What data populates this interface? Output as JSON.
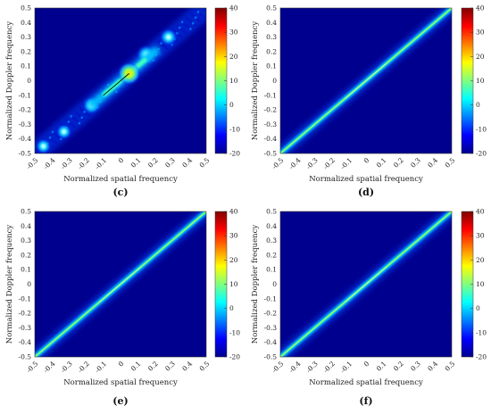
{
  "chart_data": [
    {
      "type": "heatmap",
      "panel_label": "(c)",
      "xlabel": "Normalized spatial frequency",
      "ylabel": "Normalized Doppler frequency",
      "xlim": [
        -0.5,
        0.5
      ],
      "ylim": [
        -0.5,
        0.5
      ],
      "x_ticks": [
        "-0.5",
        "-0.4",
        "-0.3",
        "-0.2",
        "-0.1",
        "0",
        "0.1",
        "0.2",
        "0.3",
        "0.4",
        "0.5"
      ],
      "y_ticks": [
        "0.5",
        "0.4",
        "0.3",
        "0.2",
        "0.1",
        "0",
        "-0.1",
        "-0.2",
        "-0.3",
        "-0.4",
        "-0.5"
      ],
      "colorbar": {
        "range": [
          -20,
          40
        ],
        "ticks": [
          "40",
          "30",
          "20",
          "10",
          "0",
          "-10",
          "-20"
        ]
      },
      "ridge": {
        "kind": "diagonal-segment",
        "x_range": [
          -0.1,
          0.15
        ],
        "peak": [
          0.05,
          0.05
        ]
      },
      "peaks": [
        {
          "x": -0.45,
          "y": -0.45,
          "level": 0.15
        },
        {
          "x": -0.33,
          "y": -0.35,
          "level": 0.15
        },
        {
          "x": -0.17,
          "y": -0.17,
          "level": 0.2
        },
        {
          "x": 0.28,
          "y": 0.3,
          "level": 0.2
        },
        {
          "x": 0.15,
          "y": 0.18,
          "level": 0.25
        }
      ]
    },
    {
      "type": "heatmap",
      "panel_label": "(d)",
      "xlabel": "Normalized spatial frequency",
      "ylabel": "Normalized Doppler frequency",
      "xlim": [
        -0.5,
        0.5
      ],
      "ylim": [
        -0.5,
        0.5
      ],
      "x_ticks": [
        "-0.5",
        "-0.4",
        "-0.3",
        "-0.2",
        "-0.1",
        "0",
        "0.1",
        "0.2",
        "0.3",
        "0.4",
        "0.5"
      ],
      "y_ticks": [
        "0.5",
        "0.4",
        "0.3",
        "0.2",
        "0.1",
        "0",
        "-0.1",
        "-0.2",
        "-0.3",
        "-0.4",
        "-0.5"
      ],
      "colorbar": {
        "range": [
          -20,
          40
        ],
        "ticks": [
          "40",
          "30",
          "20",
          "10",
          "0",
          "-10",
          "-20"
        ]
      },
      "ridge": {
        "kind": "full-diagonal",
        "x_range": [
          -0.5,
          0.5
        ]
      }
    },
    {
      "type": "heatmap",
      "panel_label": "(e)",
      "xlabel": "Normalized spatial frequency",
      "ylabel": "Normalized Doppler frequency",
      "xlim": [
        -0.5,
        0.5
      ],
      "ylim": [
        -0.5,
        0.5
      ],
      "x_ticks": [
        "-0.5",
        "-0.4",
        "-0.3",
        "-0.2",
        "-0.1",
        "0",
        "0.1",
        "0.2",
        "0.3",
        "0.4",
        "0.5"
      ],
      "y_ticks": [
        "0.5",
        "0.4",
        "0.3",
        "0.2",
        "0.1",
        "0",
        "-0.1",
        "-0.2",
        "-0.3",
        "-0.4",
        "-0.5"
      ],
      "colorbar": {
        "range": [
          -20,
          40
        ],
        "ticks": [
          "40",
          "30",
          "20",
          "10",
          "0",
          "-10",
          "-20"
        ]
      },
      "ridge": {
        "kind": "full-diagonal",
        "x_range": [
          -0.5,
          0.5
        ]
      }
    },
    {
      "type": "heatmap",
      "panel_label": "(f)",
      "xlabel": "Normalized spatial frequency",
      "ylabel": "Normalized Doppler frequency",
      "xlim": [
        -0.5,
        0.5
      ],
      "ylim": [
        -0.5,
        0.5
      ],
      "x_ticks": [
        "-0.5",
        "-0.4",
        "-0.3",
        "-0.2",
        "-0.1",
        "0",
        "0.1",
        "0.2",
        "0.3",
        "0.4",
        "0.5"
      ],
      "y_ticks": [
        "0.5",
        "0.4",
        "0.3",
        "0.2",
        "0.1",
        "0",
        "-0.1",
        "-0.2",
        "-0.3",
        "-0.4",
        "-0.5"
      ],
      "colorbar": {
        "range": [
          -20,
          40
        ],
        "ticks": [
          "40",
          "30",
          "20",
          "10",
          "0",
          "-10",
          "-20"
        ]
      },
      "ridge": {
        "kind": "full-diagonal",
        "x_range": [
          -0.5,
          0.5
        ]
      }
    }
  ],
  "colors": {
    "background": "#00008f",
    "ridge_outer": "#00b0ff",
    "ridge_mid": "#20e0d0",
    "ridge_core": "#b0ff50",
    "peak_hot": "#ffe000"
  }
}
